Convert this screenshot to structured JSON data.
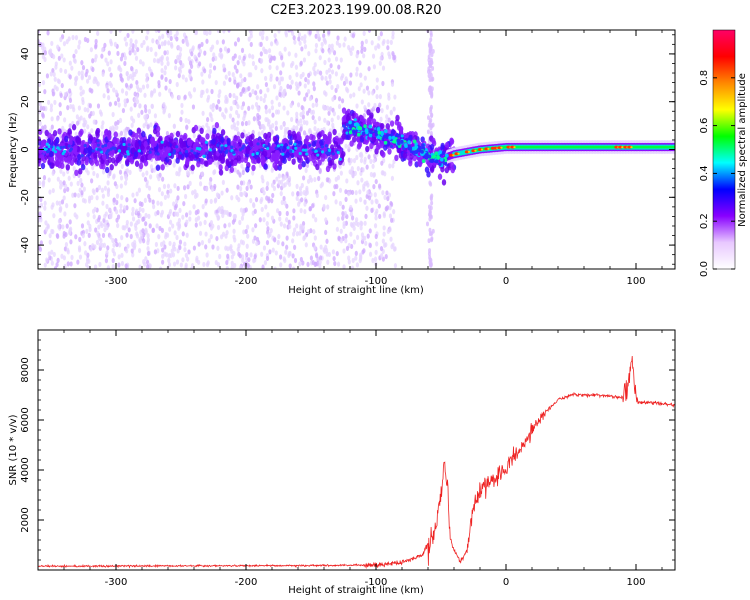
{
  "title": "C2E3.2023.199.00.08.R20",
  "chart_data": [
    {
      "type": "heatmap",
      "description_label": "spectrogram",
      "xlabel": "Height of straight line (km)",
      "ylabel": "Frequency (Hz)",
      "xlim": [
        -360,
        130
      ],
      "ylim": [
        -50,
        50
      ],
      "xticks": [
        -300,
        -200,
        -100,
        0,
        100
      ],
      "xtick_labels": [
        "-300",
        "-200",
        "-100",
        "0",
        "100"
      ],
      "yticks": [
        -40,
        -20,
        0,
        20,
        40
      ],
      "ytick_labels": [
        "-40",
        "-20",
        "0",
        "20",
        "40"
      ],
      "colorbar": {
        "label": "Normalized spectral amplitude",
        "range": [
          0.0,
          1.0
        ],
        "ticks": [
          0.0,
          0.2,
          0.4,
          0.6,
          0.8
        ],
        "tick_labels": [
          "0.0",
          "0.2",
          "0.4",
          "0.6",
          "0.8"
        ],
        "colors": [
          "#ffffff",
          "#e8c8ff",
          "#8800ff",
          "#0000ff",
          "#00ffff",
          "#00ff00",
          "#ffff00",
          "#ff8800",
          "#ff0000",
          "#ff0066"
        ]
      },
      "features": {
        "noise_region_x": [
          -360,
          -85
        ],
        "noise_band_hz": 8,
        "signal_onset_x": -45,
        "tone_track": {
          "x": [
            -120,
            -110,
            -100,
            -90,
            -80,
            -70,
            -60,
            -50,
            -40,
            -20,
            0,
            50,
            100,
            130
          ],
          "y": [
            10,
            8,
            7,
            5,
            3,
            0,
            -2,
            -4,
            -2,
            0,
            1,
            1,
            1,
            1
          ]
        }
      }
    },
    {
      "type": "line",
      "series_name": "SNR",
      "color": "#ee2222",
      "xlabel": "Height of straight line (km)",
      "ylabel": "SNR (10 * v/v)",
      "xlim": [
        -360,
        130
      ],
      "ylim": [
        0,
        9600
      ],
      "xticks": [
        -300,
        -200,
        -100,
        0,
        100
      ],
      "xtick_labels": [
        "-300",
        "-200",
        "-100",
        "0",
        "100"
      ],
      "yticks": [
        2000,
        4000,
        6000,
        8000
      ],
      "ytick_labels": [
        "2000",
        "4000",
        "6000",
        "8000"
      ],
      "trend": {
        "x": [
          -360,
          -150,
          -100,
          -80,
          -65,
          -55,
          -50,
          -47,
          -42,
          -35,
          -30,
          -25,
          -20,
          -10,
          0,
          10,
          20,
          30,
          40,
          50,
          70,
          90,
          95,
          97,
          100,
          110,
          130
        ],
        "y": [
          150,
          180,
          200,
          300,
          600,
          1400,
          3000,
          4500,
          1000,
          300,
          800,
          2600,
          3200,
          3700,
          4000,
          4700,
          5600,
          6300,
          6800,
          7000,
          7000,
          6900,
          7600,
          8600,
          6700,
          6700,
          6600
        ]
      }
    }
  ]
}
